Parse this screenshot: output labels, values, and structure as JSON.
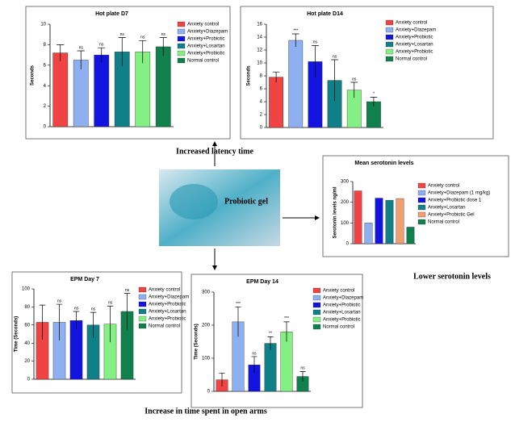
{
  "chart_data": [
    {
      "type": "bar",
      "title": "Hot plate D7",
      "ylabel": "Seconds",
      "categories": [
        "Anxiety control",
        "Anxiety+Diazepam",
        "Anxiety+Probiotic",
        "Anxiety+Losartan",
        "Anxiety+Probiotic",
        "Normal control"
      ],
      "values": [
        7.2,
        6.5,
        7.0,
        7.3,
        7.3,
        7.8
      ],
      "errors": [
        0.8,
        0.9,
        0.7,
        1.4,
        1.1,
        0.9
      ],
      "annotations": [
        null,
        "ns",
        "ns",
        "ns",
        "ns",
        "ns"
      ],
      "colors": [
        "#f04444",
        "#8fb0f0",
        "#1414e0",
        "#108088",
        "#84f084",
        "#10804c"
      ],
      "ylim": [
        0,
        10
      ],
      "yticks": [
        0,
        2,
        4,
        6,
        8,
        10
      ]
    },
    {
      "type": "bar",
      "title": "Hot plate D14",
      "ylabel": "Seconds",
      "categories": [
        "Anxiety control",
        "Anxiety+Diazepam",
        "Anxiety+Probiotic",
        "Anxiety+Losartan",
        "Anxiety+Probiotic",
        "Normal control"
      ],
      "values": [
        7.8,
        13.5,
        10.2,
        7.3,
        5.8,
        4.0
      ],
      "errors": [
        0.8,
        1.0,
        2.5,
        3.2,
        1.2,
        0.7
      ],
      "annotations": [
        null,
        "***",
        "ns",
        "ns",
        "ns",
        "*"
      ],
      "colors": [
        "#f04444",
        "#8fb0f0",
        "#1414e0",
        "#108088",
        "#84f084",
        "#10804c"
      ],
      "ylim": [
        0,
        16
      ],
      "yticks": [
        0,
        2,
        4,
        6,
        8,
        10,
        12,
        14,
        16
      ]
    },
    {
      "type": "bar",
      "title": "Mean serotonin levels",
      "ylabel": "Serotonin levels ng/ml",
      "categories": [
        "Anxiety control",
        "Anxiety+Diazepam (1 mg/kg)",
        "Anxiety+Probiotic dose 1",
        "Anxiety+Losartan",
        "Anxiety+Probiotic Gel",
        "Normal control"
      ],
      "values": [
        255,
        100,
        220,
        210,
        218,
        80
      ],
      "colors": [
        "#f04444",
        "#8fb0f0",
        "#1414e0",
        "#108088",
        "#f0a070",
        "#10804c"
      ],
      "ylim": [
        0,
        300
      ],
      "yticks": [
        0,
        100,
        200,
        300
      ]
    },
    {
      "type": "bar",
      "title": "EPM Day 7",
      "ylabel": "Time (Seconds)",
      "categories": [
        "Anxiety control",
        "Anxiety+Diazepam",
        "Anxiety+Probiotic",
        "Anxiety+Losartan",
        "Anxiety+Probiotic",
        "Normal control"
      ],
      "values": [
        63,
        63,
        65,
        60,
        61,
        75
      ],
      "errors": [
        19,
        20,
        10,
        14,
        20,
        20
      ],
      "annotations": [
        null,
        "ns",
        "ns",
        "ns",
        "ns",
        "ns"
      ],
      "colors": [
        "#f04444",
        "#8fb0f0",
        "#1414e0",
        "#108088",
        "#84f084",
        "#10804c"
      ],
      "ylim": [
        0,
        100
      ],
      "yticks": [
        0,
        20,
        40,
        60,
        80,
        100
      ]
    },
    {
      "type": "bar",
      "title": "EPM Day 14",
      "ylabel": "Time (Seconds)",
      "categories": [
        "Anxiety control",
        "Anxiety+Diazepam",
        "Anxiety+Probiotic",
        "Anxiety+Losartan",
        "Anxiety+Probiotic",
        "Normal control"
      ],
      "values": [
        35,
        210,
        80,
        145,
        180,
        45
      ],
      "errors": [
        20,
        45,
        25,
        20,
        30,
        15
      ],
      "annotations": [
        null,
        "***",
        "ns",
        "**",
        "***",
        "ns"
      ],
      "colors": [
        "#f04444",
        "#8fb0f0",
        "#1414e0",
        "#108088",
        "#84f084",
        "#10804c"
      ],
      "ylim": [
        0,
        300
      ],
      "yticks": [
        0,
        100,
        200,
        300
      ]
    }
  ],
  "image_label": "Probiotic gel",
  "captions": [
    "Increased latency time",
    "Lower serotonin levels",
    "Increase in time spent in open arms"
  ]
}
